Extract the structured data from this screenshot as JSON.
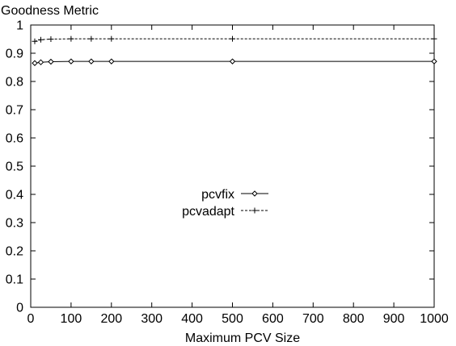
{
  "chart_data": {
    "type": "line",
    "ylabel": "Goodness Metric",
    "xlabel": "Maximum PCV Size",
    "xlim": [
      0,
      1000
    ],
    "ylim": [
      0,
      1
    ],
    "x_ticks": [
      "0",
      "100",
      "200",
      "300",
      "400",
      "500",
      "600",
      "700",
      "800",
      "900",
      "1000"
    ],
    "y_ticks": [
      "0",
      "0.1",
      "0.2",
      "0.3",
      "0.4",
      "0.5",
      "0.6",
      "0.7",
      "0.8",
      "0.9",
      "1"
    ],
    "grid": false,
    "legend_position": "center",
    "series": [
      {
        "name": "pcvfix",
        "line_style": "solid",
        "marker": "diamond",
        "x": [
          10,
          25,
          50,
          100,
          150,
          200,
          500,
          1000
        ],
        "y": [
          0.865,
          0.868,
          0.87,
          0.871,
          0.871,
          0.871,
          0.871,
          0.871
        ]
      },
      {
        "name": "pcvadapt",
        "line_style": "dashed",
        "marker": "plus",
        "x": [
          10,
          25,
          50,
          100,
          150,
          200,
          500,
          1000
        ],
        "y": [
          0.942,
          0.948,
          0.95,
          0.951,
          0.951,
          0.951,
          0.951,
          0.951
        ]
      }
    ]
  }
}
